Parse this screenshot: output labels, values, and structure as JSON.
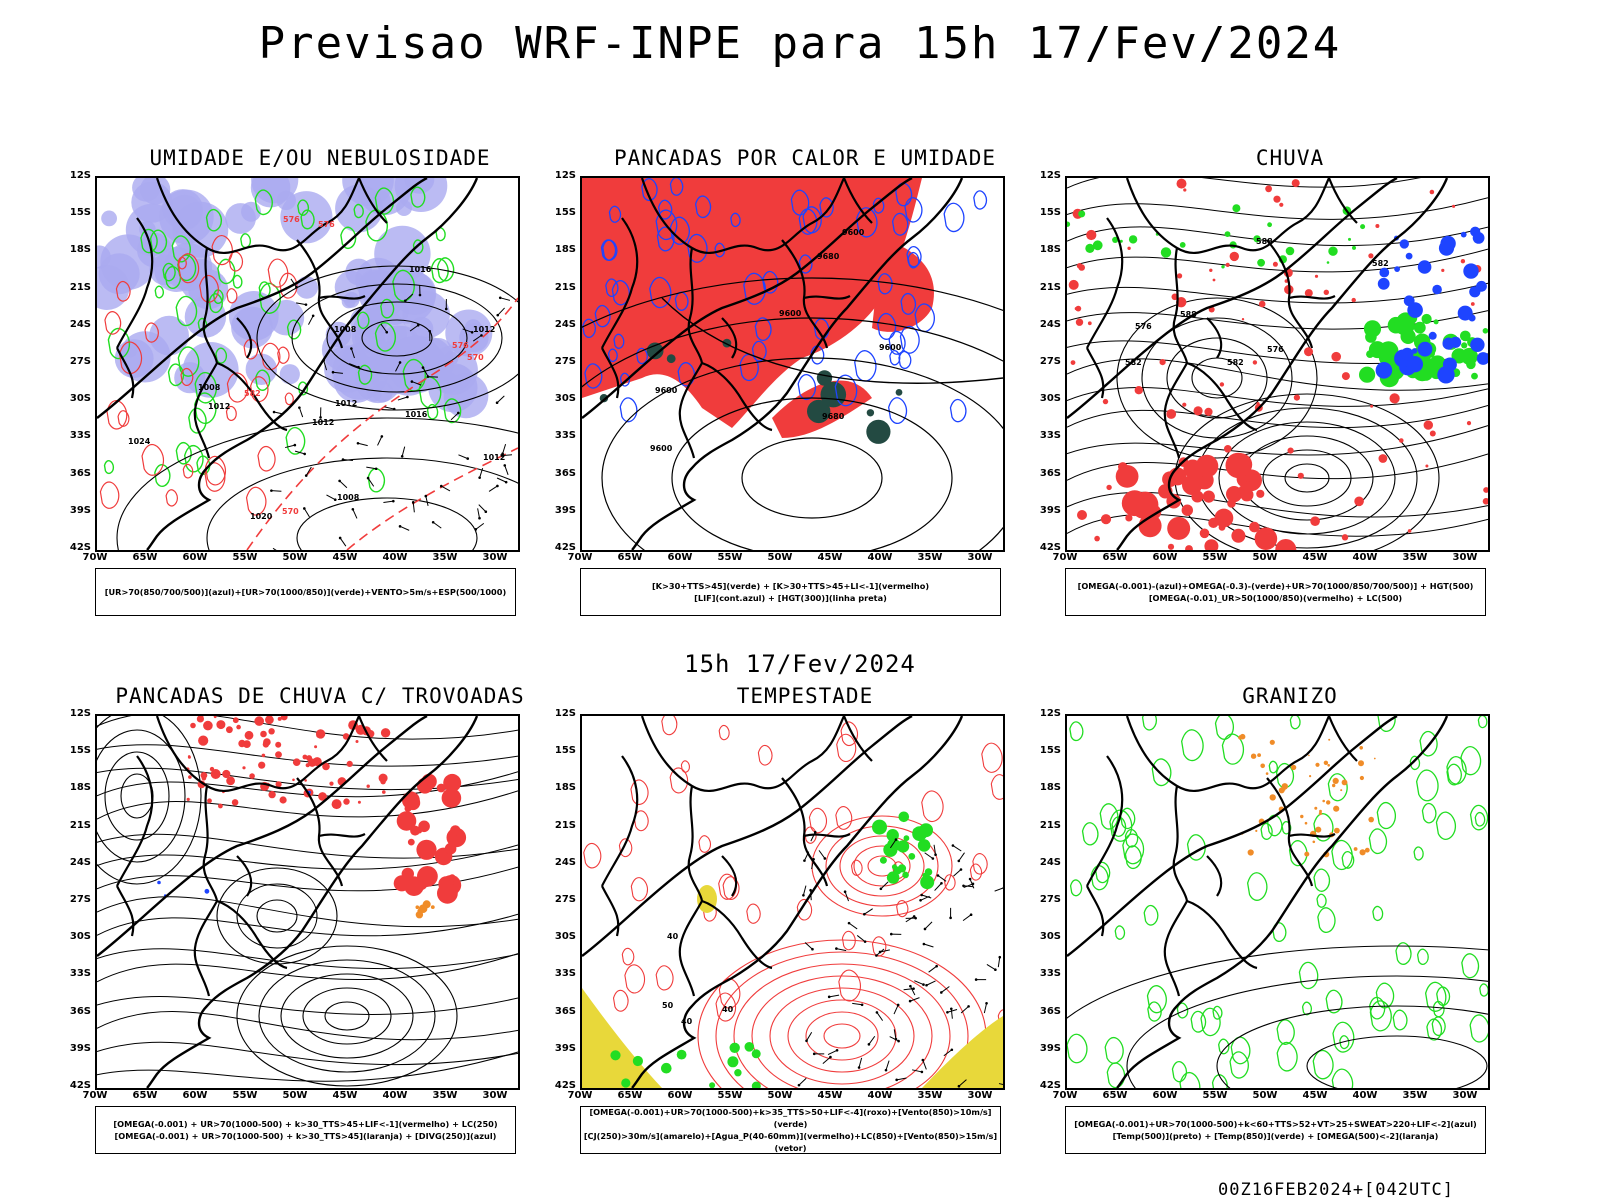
{
  "header": {
    "title": "Previsao WRF-INPE  para 15h 17/Fev/2024"
  },
  "mid_title": "15h 17/Fev/2024",
  "footer": "00Z16FEB2024+[042UTC]",
  "axes": {
    "lat_labels": [
      "12S",
      "15S",
      "18S",
      "21S",
      "24S",
      "27S",
      "30S",
      "33S",
      "36S",
      "39S",
      "42S"
    ],
    "lon_labels": [
      "70W",
      "65W",
      "60W",
      "55W",
      "50W",
      "45W",
      "40W",
      "35W",
      "30W"
    ]
  },
  "colors": {
    "red": "#f03c3c",
    "green": "#22dd22",
    "blue": "#1e44ff",
    "lavender": "#aaaaf0",
    "darkteal": "#234a42",
    "yellow": "#e8d83a",
    "orange": "#f08c28",
    "black": "#000000"
  },
  "panels": [
    {
      "id": "umidade",
      "title": "UMIDADE E/OU NEBULOSIDADE",
      "legend": [
        "[UR>70(850/700/500)](azul)+[UR>70(1000/850)](verde)+VENTO>5m/s+ESP(500/1000)"
      ],
      "contour_labels": [
        "1012",
        "1008",
        "1008",
        "1012",
        "1008",
        "1012",
        "1012",
        "1012",
        "1016",
        "1016",
        "1020",
        "1024",
        "576",
        "576",
        "570",
        "570",
        "576",
        "582"
      ]
    },
    {
      "id": "pancadas_calor",
      "title": "PANCADAS POR CALOR E UMIDADE",
      "legend": [
        "[K>30+TTS>45](verde) + [K>30+TTS>45+LI<-1](vermelho)",
        "[LIF](cont.azul) + [HGT(300)](linha preta)"
      ],
      "contour_labels": [
        "9680",
        "9680",
        "9600",
        "9600",
        "9600",
        "9600",
        "9600"
      ]
    },
    {
      "id": "chuva",
      "title": "CHUVA",
      "legend": [
        "[OMEGA(-0.001)-(azul)+OMEGA(-0.3)-(verde)+UR>70(1000/850/700/500)] + HGT(500)",
        "[OMEGA(-0.01)_UR>50(1000/850)(vermelho) + LC(500)"
      ],
      "contour_labels": [
        "588",
        "582",
        "576",
        "582",
        "588",
        "582",
        "576"
      ]
    },
    {
      "id": "trovoadas",
      "title": "PANCADAS DE CHUVA C/ TROVOADAS",
      "legend": [
        "[OMEGA(-0.001) + UR>70(1000-500) + k>30_TTS>45+LIF<-1](vermelho) + LC(250)",
        "[OMEGA(-0.001) + UR>70(1000-500) + k>30_TTS>45](laranja) + [DIVG(250)](azul)"
      ],
      "contour_labels": []
    },
    {
      "id": "tempestade",
      "title": "TEMPESTADE",
      "legend": [
        "[OMEGA(-0.001)+UR>70(1000-500)+k>35_TTS>50+LIF<-4](roxo)+[Vento(850)>10m/s](verde)",
        "[CJ(250)>30m/s](amarelo)+[Agua_P(40-60mm)](vermelho)+LC(850)+[Vento(850)>15m/s](vetor)"
      ],
      "contour_labels": [
        "40",
        "50",
        "40",
        "40"
      ]
    },
    {
      "id": "granizo",
      "title": "GRANIZO",
      "legend": [
        "[OMEGA(-0.001)+UR>70(1000-500)+k<60+TTS>52+VT>25+SWEAT>220+LIF<-2](azul)",
        "[Temp(500)](preto) + [Temp(850)](verde) + [OMEGA(500)<-2](laranja)"
      ],
      "contour_labels": []
    }
  ]
}
